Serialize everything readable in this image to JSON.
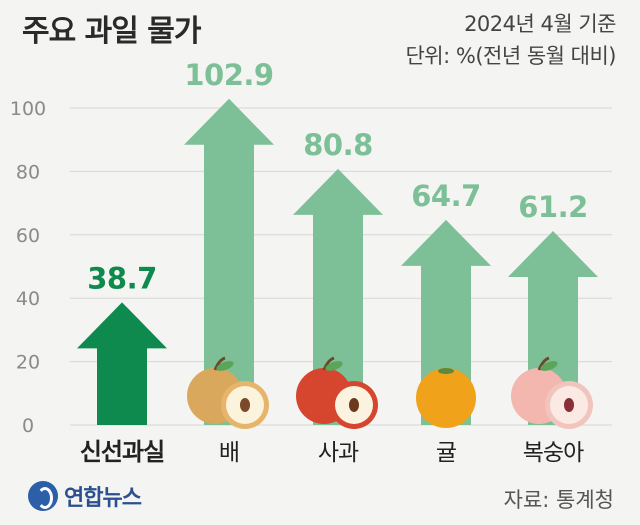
{
  "chart_data": {
    "type": "bar",
    "title": "주요 과일 물가",
    "basis": "2024년 4월 기준",
    "unit": "단위: %(전년 동월 대비)",
    "categories": [
      "신선과실",
      "배",
      "사과",
      "귤",
      "복숭아"
    ],
    "values": [
      38.7,
      102.9,
      80.8,
      64.7,
      61.2
    ],
    "value_labels": [
      "38.7",
      "102.9",
      "80.8",
      "64.7",
      "61.2"
    ],
    "ylim": [
      0,
      100
    ],
    "yticks": [
      "0",
      "20",
      "40",
      "60",
      "80",
      "100"
    ],
    "colors": {
      "highlight": "#0e8a4e",
      "normal": "#7dbf97"
    },
    "highlight_index": 0
  },
  "footer": {
    "logo_text": "연합뉴스",
    "source": "자료: 통계청"
  }
}
